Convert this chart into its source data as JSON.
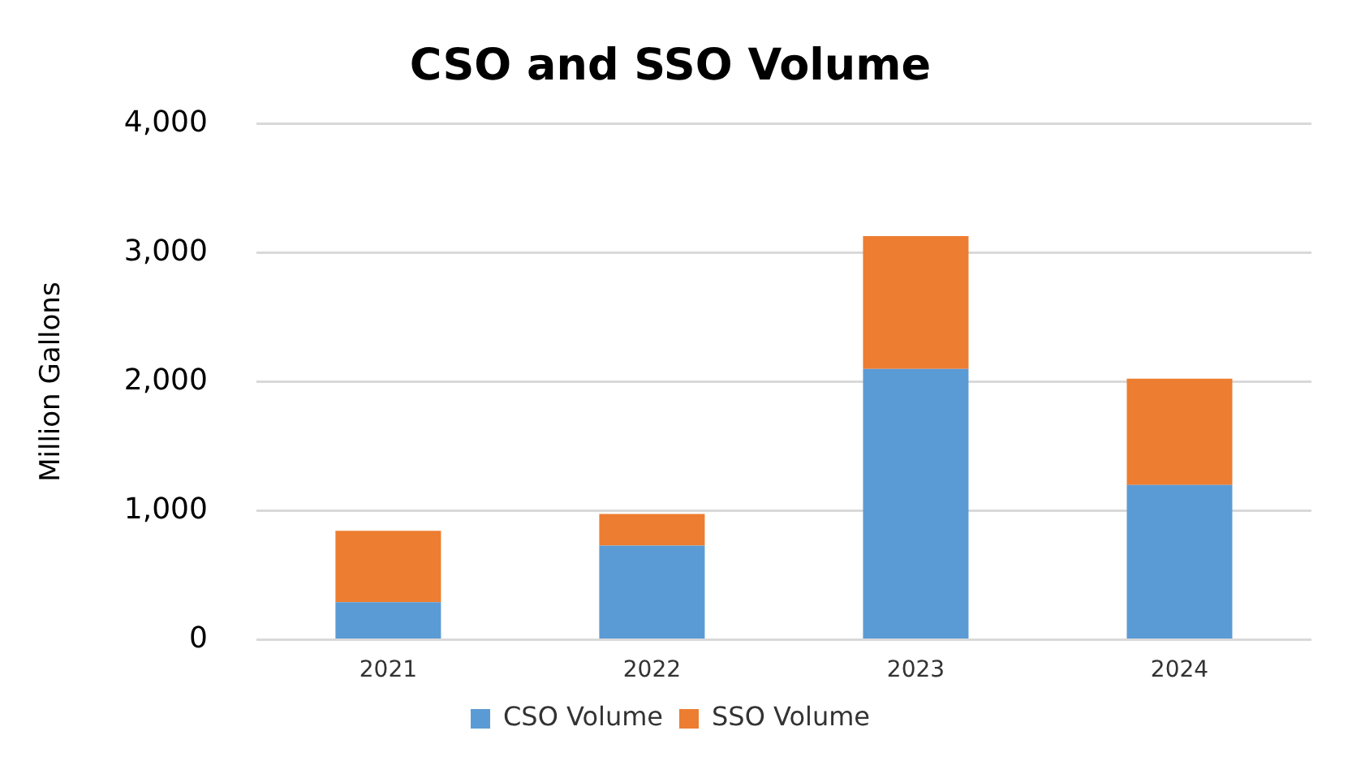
{
  "chart_data": {
    "type": "bar",
    "title": "CSO and SSO Volume",
    "ylabel": "Million Gallons",
    "categories": [
      "2021",
      "2022",
      "2023",
      "2024"
    ],
    "series": [
      {
        "name": "CSO Volume",
        "color": "#5b9bd5",
        "values": [
          290,
          730,
          2100,
          1200
        ]
      },
      {
        "name": "SSO Volume",
        "color": "#ed7d31",
        "values": [
          555,
          245,
          1030,
          825
        ]
      }
    ],
    "stacked": true,
    "ylim": [
      0,
      4000
    ],
    "yticks": [
      {
        "value": 0,
        "label": "0"
      },
      {
        "value": 1000,
        "label": "1,000"
      },
      {
        "value": 2000,
        "label": "2,000"
      },
      {
        "value": 3000,
        "label": "3,000"
      },
      {
        "value": 4000,
        "label": "4,000"
      }
    ],
    "grid": "y",
    "legend": "bottom"
  }
}
